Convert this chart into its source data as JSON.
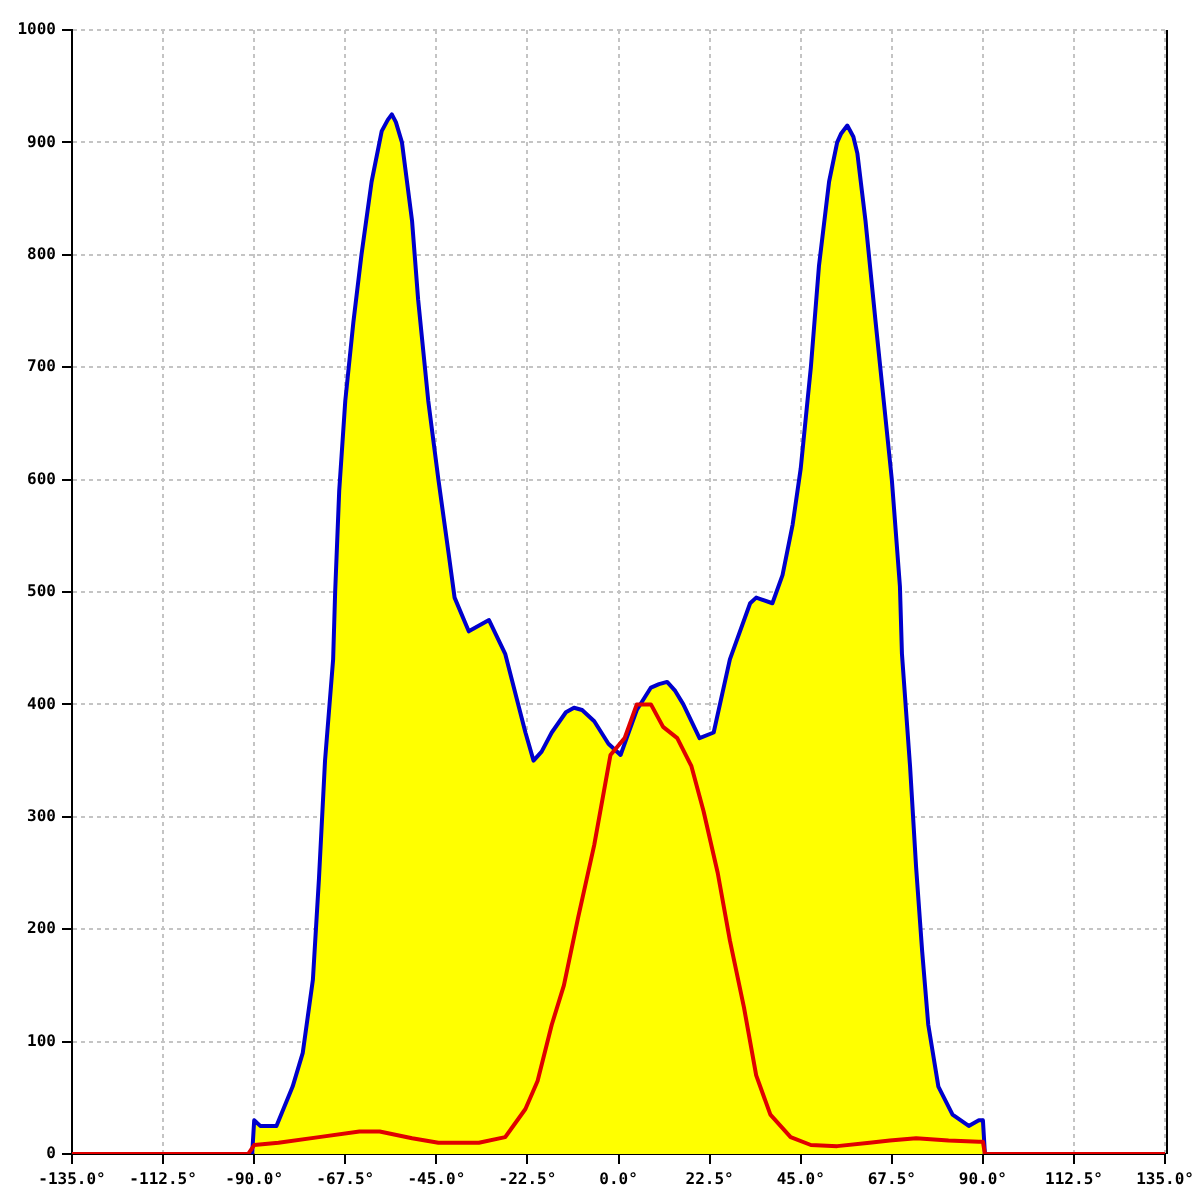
{
  "chart_data": {
    "type": "line",
    "xlim": [
      -135,
      135
    ],
    "ylim": [
      0,
      1000
    ],
    "xticks": [
      {
        "value": -135,
        "label": "-135.0°"
      },
      {
        "value": -112.5,
        "label": "-112.5°"
      },
      {
        "value": -90,
        "label": "-90.0°"
      },
      {
        "value": -67.5,
        "label": "-67.5°"
      },
      {
        "value": -45,
        "label": "-45.0°"
      },
      {
        "value": -22.5,
        "label": "-22.5°"
      },
      {
        "value": 0,
        "label": "0.0°"
      },
      {
        "value": 22.5,
        "label": "22.5°"
      },
      {
        "value": 45,
        "label": "45.0°"
      },
      {
        "value": 67.5,
        "label": "67.5°"
      },
      {
        "value": 90,
        "label": "90.0°"
      },
      {
        "value": 112.5,
        "label": "112.5°"
      },
      {
        "value": 135,
        "label": "135.0°"
      }
    ],
    "yticks": [
      0,
      100,
      200,
      300,
      400,
      500,
      600,
      700,
      800,
      900,
      1000
    ],
    "grid": true,
    "series": [
      {
        "type": "area",
        "color": "#ffff00",
        "x": [
          -90,
          -88.5,
          -84.5,
          -80.5,
          -78,
          -75.5,
          -74,
          -72.5,
          -70.5,
          -70,
          -69,
          -67.5,
          -65.5,
          -63.5,
          -61,
          -58.5,
          -57,
          -56,
          -55,
          -53.5,
          -51,
          -49.5,
          -47,
          -44.5,
          -42,
          -40.5,
          -37,
          -32,
          -28,
          -23,
          -21,
          -19,
          -16.5,
          -13,
          -11,
          -9,
          -6,
          -2.5,
          0.5,
          2,
          4.5,
          8,
          10,
          12,
          14,
          16,
          20,
          23.5,
          27.5,
          32.5,
          34,
          38,
          40.5,
          43,
          45,
          47.5,
          49.5,
          52,
          54,
          55,
          56.5,
          58,
          59,
          61,
          63.5,
          65.5,
          67.5,
          69.5,
          70,
          72,
          73.5,
          75,
          76.5,
          79,
          82.5,
          86.5,
          89,
          90
        ],
        "values": [
          30,
          25,
          25,
          60,
          90,
          155,
          245,
          350,
          440,
          500,
          590,
          670,
          740,
          800,
          865,
          910,
          920,
          925,
          918,
          900,
          830,
          760,
          670,
          600,
          535,
          495,
          465,
          475,
          445,
          375,
          350,
          358,
          375,
          393,
          397,
          395,
          385,
          365,
          355,
          370,
          395,
          415,
          418,
          420,
          412,
          400,
          370,
          375,
          440,
          490,
          495,
          490,
          515,
          560,
          610,
          700,
          790,
          865,
          900,
          908,
          915,
          905,
          890,
          830,
          740,
          670,
          600,
          505,
          445,
          345,
          255,
          180,
          115,
          60,
          35,
          25,
          30,
          30
        ]
      },
      {
        "color": "#0000cc",
        "x": [
          -90.5,
          -90,
          -88.5,
          -84.5,
          -80.5,
          -78,
          -75.5,
          -74,
          -72.5,
          -70.5,
          -70,
          -69,
          -67.5,
          -65.5,
          -63.5,
          -61,
          -58.5,
          -57,
          -56,
          -55,
          -53.5,
          -51,
          -49.5,
          -47,
          -44.5,
          -42,
          -40.5,
          -37,
          -32,
          -28,
          -23,
          -21,
          -19,
          -16.5,
          -13,
          -11,
          -9,
          -6,
          -2.5,
          0.5,
          2,
          4.5,
          8,
          10,
          12,
          14,
          16,
          20,
          23.5,
          27.5,
          32.5,
          34,
          38,
          40.5,
          43,
          45,
          47.5,
          49.5,
          52,
          54,
          55,
          56.5,
          58,
          59,
          61,
          63.5,
          65.5,
          67.5,
          69.5,
          70,
          72,
          73.5,
          75,
          76.5,
          79,
          82.5,
          86.5,
          89,
          90,
          90.5
        ],
        "values": [
          0,
          30,
          25,
          25,
          60,
          90,
          155,
          245,
          350,
          440,
          500,
          590,
          670,
          740,
          800,
          865,
          910,
          920,
          925,
          918,
          900,
          830,
          760,
          670,
          600,
          535,
          495,
          465,
          475,
          445,
          375,
          350,
          358,
          375,
          393,
          397,
          395,
          385,
          365,
          355,
          370,
          395,
          415,
          418,
          420,
          412,
          400,
          370,
          375,
          440,
          490,
          495,
          490,
          515,
          560,
          610,
          700,
          790,
          865,
          900,
          908,
          915,
          905,
          890,
          830,
          740,
          670,
          600,
          505,
          445,
          345,
          255,
          180,
          115,
          60,
          35,
          25,
          30,
          30,
          0
        ]
      },
      {
        "color": "#e00000",
        "x": [
          -135,
          -91.5,
          -90,
          -84,
          -74,
          -64,
          -59,
          -51,
          -44.5,
          -34.5,
          -28,
          -23,
          -20,
          -16.5,
          -13.5,
          -10,
          -6,
          -2,
          1.5,
          4.5,
          8,
          11,
          14.5,
          18,
          21,
          24.5,
          27.5,
          31,
          34,
          37.5,
          42.5,
          47.5,
          54,
          62,
          67,
          73.5,
          81.5,
          89,
          90,
          90.5,
          135
        ],
        "values": [
          0,
          0,
          8,
          10,
          15,
          20,
          20,
          14,
          10,
          10,
          15,
          40,
          65,
          115,
          150,
          210,
          275,
          355,
          370,
          400,
          400,
          380,
          370,
          345,
          305,
          250,
          190,
          130,
          70,
          35,
          15,
          8,
          7,
          10,
          12,
          14,
          12,
          11,
          11,
          0,
          0
        ]
      }
    ]
  }
}
